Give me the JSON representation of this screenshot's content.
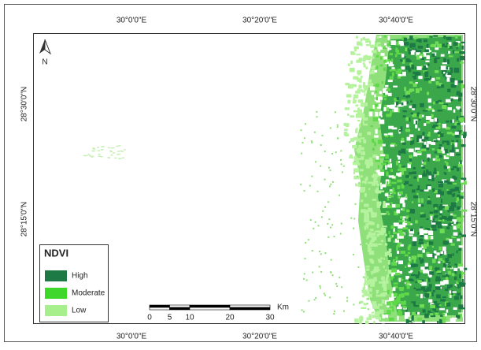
{
  "map": {
    "top_labels": [
      "30°0'0\"E",
      "30°20'0\"E",
      "30°40'0\"E"
    ],
    "bottom_labels": [
      "30°0'0\"E",
      "30°20'0\"E",
      "30°40'0\"E"
    ],
    "left_labels": [
      "28°30'0\"N",
      "28°15'0\"N"
    ],
    "right_labels": [
      "28°30'0\"N",
      "28°15'0\"N"
    ],
    "north": "N",
    "legend": {
      "title": "NDVI",
      "items": [
        "High",
        "Moderate",
        "Low"
      ]
    },
    "scale": {
      "ticks": [
        0,
        5,
        10,
        20,
        30
      ],
      "unit": "Km"
    }
  }
}
